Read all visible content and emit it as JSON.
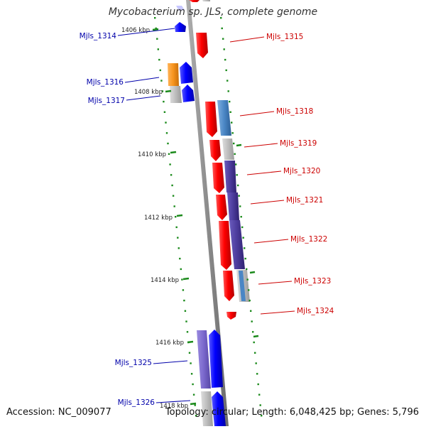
{
  "title": "Mycobacterium sp. JLS, complete genome",
  "footer": {
    "accession": "Accession: NC_009077",
    "summary": "Topology: circular; Length: 6,048,425 bp; Genes: 5,796"
  },
  "colors": {
    "forward_gene": "#ff0000",
    "reverse_gene": "#0000ff",
    "blast_blue": "#4a86c5",
    "blast_purple": "#4b3b9b",
    "blast_lavender": "#7a68cc",
    "blast_gray": "#bcbcbc",
    "blast_orange": "#f7941d",
    "backbone": "#8c8c8c",
    "tick_green": "#1b8a1b",
    "forward_label": "#cc0000",
    "reverse_label": "#0000aa"
  },
  "scale_ticks": [
    "1406 kbp",
    "1408 kbp",
    "1410 kbp",
    "1412 kbp",
    "1414 kbp",
    "1416 kbp",
    "1418 kbp"
  ],
  "gene_labels": {
    "reverse": [
      "Mjls_1314",
      "Mjls_1316",
      "Mjls_1317",
      "Mjls_1325",
      "Mjls_1326"
    ],
    "forward": [
      "Mjls_1315",
      "Mjls_1318",
      "Mjls_1319",
      "Mjls_1320",
      "Mjls_1321",
      "Mjls_1322",
      "Mjls_1323",
      "Mjls_1324"
    ]
  }
}
